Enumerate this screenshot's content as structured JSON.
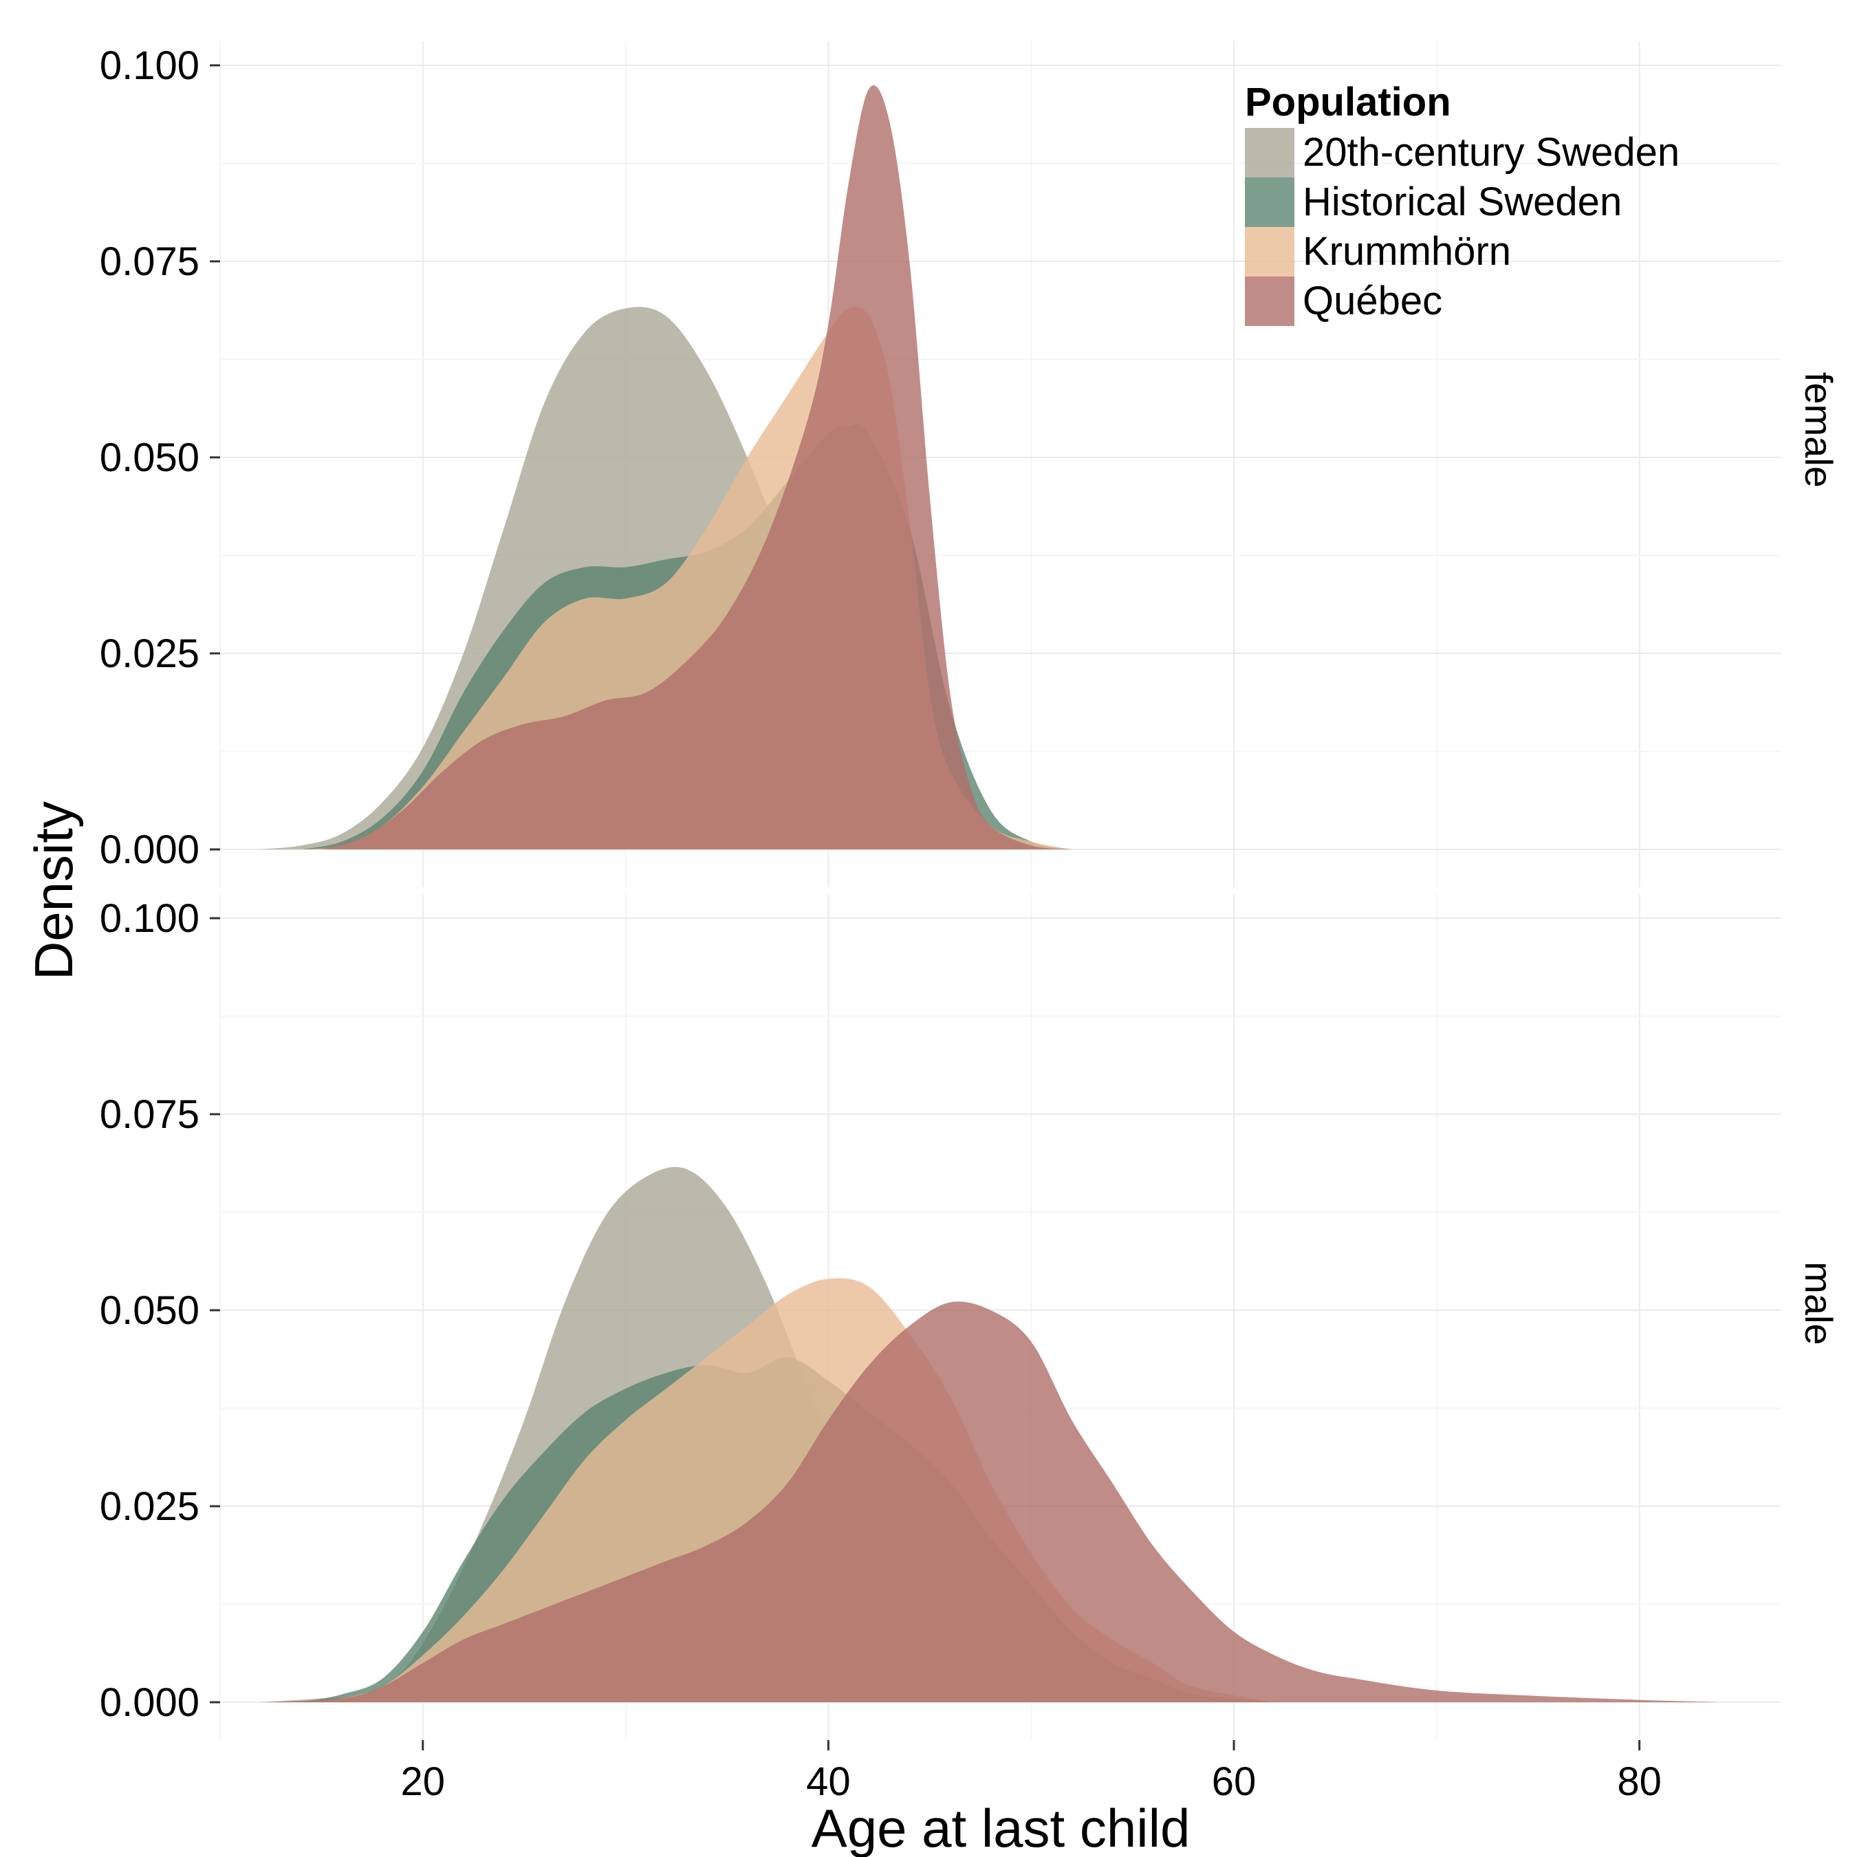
{
  "chart_data": {
    "type": "area",
    "subtype": "faceted density plot",
    "xlabel": "Age at last child",
    "ylabel": "Density",
    "xlim": [
      10,
      87
    ],
    "ylim": [
      0,
      0.1
    ],
    "x_ticks": [
      20,
      40,
      60,
      80
    ],
    "y_ticks": [
      0,
      0.025,
      0.05,
      0.075,
      0.1
    ],
    "y_tick_labels": [
      "0.000",
      "0.025",
      "0.050",
      "0.075",
      "0.100"
    ],
    "grid": true,
    "legend": {
      "title": "Population",
      "placement": "top-right",
      "entries": [
        {
          "label": "20th-century Sweden",
          "color": "#a9a897"
        },
        {
          "label": "Historical Sweden",
          "color": "#5d8470"
        },
        {
          "label": "Krummhörn",
          "color": "#e8bc95"
        },
        {
          "label": "Québec",
          "color": "#b06f6a"
        }
      ]
    },
    "panels": [
      {
        "label": "female",
        "series": [
          {
            "name": "20th-century Sweden",
            "points": [
              [
                12,
                0
              ],
              [
                14,
                0.0005
              ],
              [
                16,
                0.002
              ],
              [
                18,
                0.006
              ],
              [
                20,
                0.013
              ],
              [
                22,
                0.025
              ],
              [
                24,
                0.041
              ],
              [
                26,
                0.057
              ],
              [
                28,
                0.066
              ],
              [
                30,
                0.069
              ],
              [
                32,
                0.068
              ],
              [
                34,
                0.061
              ],
              [
                36,
                0.05
              ],
              [
                38,
                0.037
              ],
              [
                40,
                0.024
              ],
              [
                42,
                0.013
              ],
              [
                44,
                0.006
              ],
              [
                46,
                0.002
              ],
              [
                48,
                0.0005
              ],
              [
                50,
                0
              ]
            ]
          },
          {
            "name": "Historical Sweden",
            "points": [
              [
                14,
                0
              ],
              [
                16,
                0.001
              ],
              [
                18,
                0.004
              ],
              [
                20,
                0.01
              ],
              [
                22,
                0.02
              ],
              [
                24,
                0.028
              ],
              [
                26,
                0.034
              ],
              [
                28,
                0.036
              ],
              [
                30,
                0.036
              ],
              [
                32,
                0.037
              ],
              [
                34,
                0.038
              ],
              [
                36,
                0.041
              ],
              [
                38,
                0.047
              ],
              [
                40,
                0.053
              ],
              [
                41,
                0.054
              ],
              [
                42,
                0.053
              ],
              [
                44,
                0.041
              ],
              [
                46,
                0.018
              ],
              [
                48,
                0.005
              ],
              [
                50,
                0.001
              ],
              [
                52,
                0
              ]
            ]
          },
          {
            "name": "Krummhörn",
            "points": [
              [
                14,
                0
              ],
              [
                16,
                0.0005
              ],
              [
                18,
                0.003
              ],
              [
                20,
                0.008
              ],
              [
                22,
                0.015
              ],
              [
                24,
                0.022
              ],
              [
                26,
                0.029
              ],
              [
                28,
                0.032
              ],
              [
                30,
                0.032
              ],
              [
                32,
                0.034
              ],
              [
                34,
                0.041
              ],
              [
                36,
                0.05
              ],
              [
                38,
                0.058
              ],
              [
                40,
                0.066
              ],
              [
                41,
                0.069
              ],
              [
                42,
                0.068
              ],
              [
                43,
                0.06
              ],
              [
                44,
                0.042
              ],
              [
                45,
                0.02
              ],
              [
                46,
                0.01
              ],
              [
                48,
                0.003
              ],
              [
                50,
                0.001
              ],
              [
                52,
                0
              ]
            ]
          },
          {
            "name": "Québec",
            "points": [
              [
                15,
                0
              ],
              [
                17,
                0.0015
              ],
              [
                19,
                0.005
              ],
              [
                21,
                0.01
              ],
              [
                23,
                0.014
              ],
              [
                25,
                0.016
              ],
              [
                27,
                0.017
              ],
              [
                29,
                0.019
              ],
              [
                31,
                0.02
              ],
              [
                33,
                0.024
              ],
              [
                35,
                0.03
              ],
              [
                37,
                0.04
              ],
              [
                39,
                0.055
              ],
              [
                40,
                0.067
              ],
              [
                41,
                0.085
              ],
              [
                42,
                0.097
              ],
              [
                43,
                0.093
              ],
              [
                44,
                0.075
              ],
              [
                45,
                0.045
              ],
              [
                46,
                0.02
              ],
              [
                47,
                0.008
              ],
              [
                48,
                0.003
              ],
              [
                50,
                0.0005
              ],
              [
                52,
                0
              ]
            ]
          }
        ]
      },
      {
        "label": "male",
        "series": [
          {
            "name": "20th-century Sweden",
            "points": [
              [
                12,
                0
              ],
              [
                15,
                0.0005
              ],
              [
                17,
                0.001
              ],
              [
                19,
                0.004
              ],
              [
                21,
                0.012
              ],
              [
                23,
                0.023
              ],
              [
                25,
                0.036
              ],
              [
                27,
                0.051
              ],
              [
                29,
                0.062
              ],
              [
                31,
                0.067
              ],
              [
                33,
                0.068
              ],
              [
                35,
                0.063
              ],
              [
                37,
                0.053
              ],
              [
                39,
                0.04
              ],
              [
                41,
                0.028
              ],
              [
                43,
                0.018
              ],
              [
                45,
                0.011
              ],
              [
                47,
                0.006
              ],
              [
                50,
                0.003
              ],
              [
                55,
                0.001
              ],
              [
                60,
                0
              ]
            ]
          },
          {
            "name": "Historical Sweden",
            "points": [
              [
                14,
                0
              ],
              [
                16,
                0.001
              ],
              [
                18,
                0.003
              ],
              [
                20,
                0.009
              ],
              [
                22,
                0.018
              ],
              [
                24,
                0.026
              ],
              [
                26,
                0.032
              ],
              [
                28,
                0.037
              ],
              [
                30,
                0.04
              ],
              [
                32,
                0.042
              ],
              [
                34,
                0.043
              ],
              [
                36,
                0.042
              ],
              [
                38,
                0.044
              ],
              [
                40,
                0.041
              ],
              [
                42,
                0.037
              ],
              [
                44,
                0.033
              ],
              [
                46,
                0.028
              ],
              [
                48,
                0.021
              ],
              [
                50,
                0.015
              ],
              [
                52,
                0.009
              ],
              [
                54,
                0.005
              ],
              [
                56,
                0.003
              ],
              [
                58,
                0.001
              ],
              [
                62,
                0
              ]
            ]
          },
          {
            "name": "Krummhörn",
            "points": [
              [
                14,
                0
              ],
              [
                16,
                0.0005
              ],
              [
                18,
                0.002
              ],
              [
                20,
                0.006
              ],
              [
                22,
                0.011
              ],
              [
                24,
                0.017
              ],
              [
                26,
                0.024
              ],
              [
                28,
                0.031
              ],
              [
                30,
                0.036
              ],
              [
                32,
                0.04
              ],
              [
                34,
                0.044
              ],
              [
                36,
                0.048
              ],
              [
                38,
                0.052
              ],
              [
                40,
                0.054
              ],
              [
                42,
                0.053
              ],
              [
                44,
                0.047
              ],
              [
                46,
                0.039
              ],
              [
                48,
                0.028
              ],
              [
                50,
                0.019
              ],
              [
                52,
                0.012
              ],
              [
                54,
                0.008
              ],
              [
                56,
                0.005
              ],
              [
                58,
                0.002
              ],
              [
                62,
                0
              ]
            ]
          },
          {
            "name": "Québec",
            "points": [
              [
                12,
                0
              ],
              [
                16,
                0.0005
              ],
              [
                18,
                0.002
              ],
              [
                20,
                0.005
              ],
              [
                22,
                0.008
              ],
              [
                24,
                0.01
              ],
              [
                26,
                0.012
              ],
              [
                28,
                0.014
              ],
              [
                30,
                0.016
              ],
              [
                32,
                0.018
              ],
              [
                34,
                0.02
              ],
              [
                36,
                0.023
              ],
              [
                38,
                0.028
              ],
              [
                40,
                0.036
              ],
              [
                42,
                0.043
              ],
              [
                44,
                0.048
              ],
              [
                46,
                0.051
              ],
              [
                48,
                0.05
              ],
              [
                50,
                0.046
              ],
              [
                52,
                0.036
              ],
              [
                54,
                0.028
              ],
              [
                56,
                0.02
              ],
              [
                58,
                0.014
              ],
              [
                60,
                0.009
              ],
              [
                62,
                0.006
              ],
              [
                64,
                0.004
              ],
              [
                66,
                0.003
              ],
              [
                70,
                0.0015
              ],
              [
                75,
                0.0008
              ],
              [
                80,
                0.0003
              ],
              [
                84,
                0
              ]
            ]
          }
        ]
      }
    ]
  }
}
